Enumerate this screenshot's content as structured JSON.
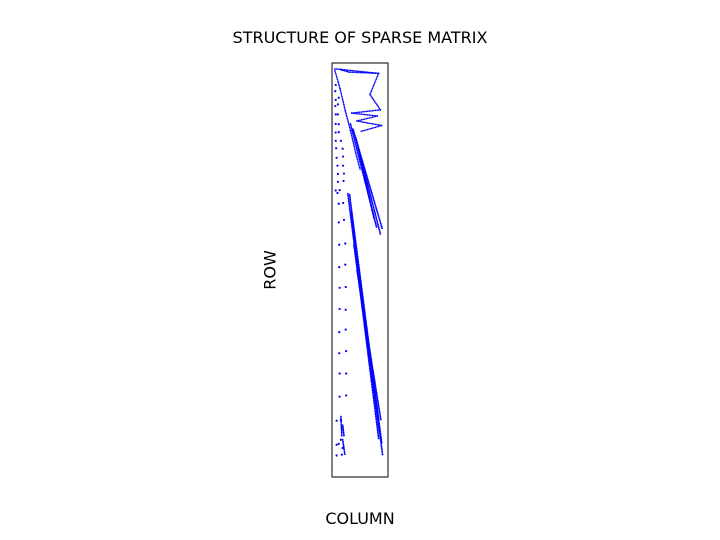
{
  "chart_data": {
    "type": "scatter",
    "title": "STRUCTURE OF SPARSE MATRIX",
    "xlabel": "COLUMN",
    "ylabel": "ROW",
    "grid": false,
    "legend": "none",
    "ticks": "none",
    "marker_color": "#0000ff",
    "orientation": "rows increase downward",
    "series": [
      {
        "segments": [
          [
            0.2,
            1.4,
            10.3,
            2.5
          ],
          [
            0.2,
            1.8,
            1.4,
            6.2
          ],
          [
            1.4,
            6.2,
            2.6,
            11.5
          ],
          [
            2.6,
            11.5,
            3.8,
            16.3
          ],
          [
            3.8,
            16.3,
            5.0,
            21.7
          ],
          [
            5.0,
            21.7,
            6.0,
            25.6
          ]
        ]
      },
      {
        "segments": [
          [
            1.3,
            1.5,
            1.8,
            1.7
          ],
          [
            1.8,
            1.7,
            3.5,
            2.2
          ],
          [
            3.5,
            2.2,
            10.3,
            2.5
          ],
          [
            10.3,
            2.5,
            8.3,
            7.6
          ],
          [
            8.3,
            7.6,
            10.7,
            11.3
          ],
          [
            10.7,
            11.3,
            4.1,
            12.1
          ],
          [
            4.1,
            12.1,
            10.0,
            12.8
          ],
          [
            10.0,
            12.8,
            5.3,
            14.0
          ],
          [
            5.3,
            14.0,
            11.0,
            15.1
          ],
          [
            11.0,
            15.1,
            6.3,
            16.5
          ]
        ]
      },
      {
        "segments": [
          [
            3.8,
            14.7,
            9.8,
            39.6
          ],
          [
            4.4,
            16.0,
            11.1,
            39.9
          ],
          [
            5.0,
            18.0,
            10.7,
            41.3
          ],
          [
            5.6,
            20.6,
            9.2,
            37.4
          ]
        ]
      },
      {
        "segments": [
          [
            3.2,
            31.6,
            10.3,
            90.7
          ],
          [
            3.6,
            31.8,
            11.0,
            91.7
          ],
          [
            4.0,
            36.0,
            11.2,
            94.6
          ],
          [
            4.6,
            44.0,
            10.5,
            89.0
          ],
          [
            5.3,
            50.0,
            10.8,
            86.1
          ]
        ]
      },
      {
        "points": [
          [
            0.4,
            5.3
          ],
          [
            0.3,
            6.8
          ],
          [
            0.4,
            8.9
          ],
          [
            1.1,
            8.4
          ],
          [
            0.3,
            10.4
          ],
          [
            0.9,
            10.0
          ],
          [
            0.4,
            12.4
          ],
          [
            0.9,
            12.4
          ],
          [
            0.4,
            14.7
          ],
          [
            1.1,
            14.8
          ],
          [
            0.4,
            16.8
          ],
          [
            1.1,
            16.7
          ],
          [
            0.4,
            18.8
          ],
          [
            1.6,
            18.8
          ],
          [
            0.5,
            20.6
          ],
          [
            2.0,
            20.7
          ],
          [
            0.6,
            22.9
          ],
          [
            2.1,
            22.6
          ],
          [
            0.8,
            24.8
          ],
          [
            2.1,
            24.8
          ],
          [
            0.9,
            26.8
          ],
          [
            2.3,
            26.7
          ],
          [
            0.9,
            28.7
          ],
          [
            2.2,
            28.5
          ],
          [
            0.4,
            30.8
          ],
          [
            0.8,
            31.4
          ],
          [
            1.3,
            30.7
          ],
          [
            1.1,
            34.0
          ],
          [
            2.1,
            33.8
          ],
          [
            1.1,
            38.5
          ],
          [
            2.3,
            37.9
          ],
          [
            1.2,
            43.9
          ],
          [
            2.6,
            43.6
          ],
          [
            1.2,
            49.3
          ],
          [
            2.6,
            48.7
          ],
          [
            1.3,
            54.3
          ],
          [
            2.7,
            54.1
          ],
          [
            1.3,
            59.4
          ],
          [
            2.7,
            59.6
          ],
          [
            1.2,
            65.0
          ],
          [
            2.7,
            64.4
          ],
          [
            1.2,
            70.1
          ],
          [
            2.8,
            69.6
          ],
          [
            1.3,
            75.0
          ],
          [
            2.8,
            75.0
          ],
          [
            1.3,
            80.6
          ],
          [
            2.8,
            80.3
          ],
          [
            0.6,
            86.4
          ],
          [
            1.6,
            86.3
          ],
          [
            1.6,
            91.0
          ],
          [
            0.6,
            92.2
          ],
          [
            1.1,
            92.0
          ],
          [
            0.6,
            94.8
          ],
          [
            2.0,
            93.0
          ],
          [
            1.8,
            94.6
          ]
        ]
      },
      {
        "segments": [
          [
            1.6,
            85.4,
            1.8,
            90.0
          ],
          [
            2.0,
            87.5,
            2.3,
            90.0
          ],
          [
            2.0,
            91.0,
            2.5,
            94.5
          ]
        ]
      }
    ]
  }
}
